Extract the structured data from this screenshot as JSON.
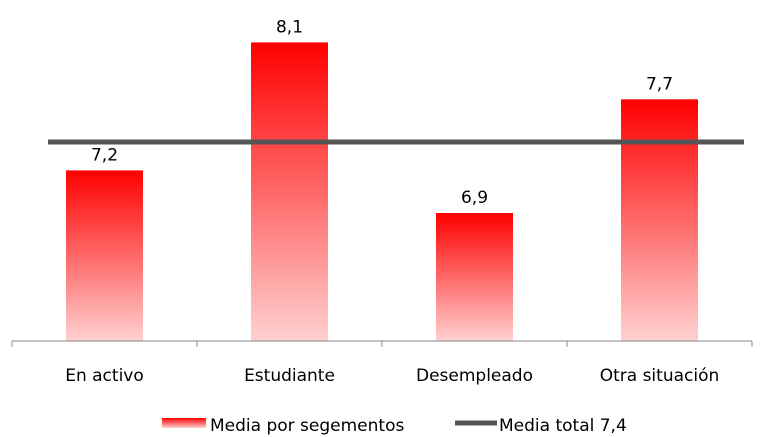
{
  "chart_data": {
    "type": "bar",
    "categories": [
      "En activo",
      "Estudiante",
      "Desempleado",
      "Otra situación"
    ],
    "series": [
      {
        "name": "Media por segementos",
        "values": [
          7.2,
          8.1,
          6.9,
          7.7
        ]
      }
    ],
    "value_labels": [
      "7,2",
      "8,1",
      "6,9",
      "7,7"
    ],
    "reference_line": {
      "name": "Media total 7,4",
      "value": 7.4
    },
    "ylim": [
      6.0,
      8.3
    ],
    "grid": false,
    "legend_position": "bottom",
    "colors": {
      "bar_top": "#ff0000",
      "bar_bottom": "#ffd0d0",
      "line": "#555555",
      "axis": "#888888"
    }
  }
}
